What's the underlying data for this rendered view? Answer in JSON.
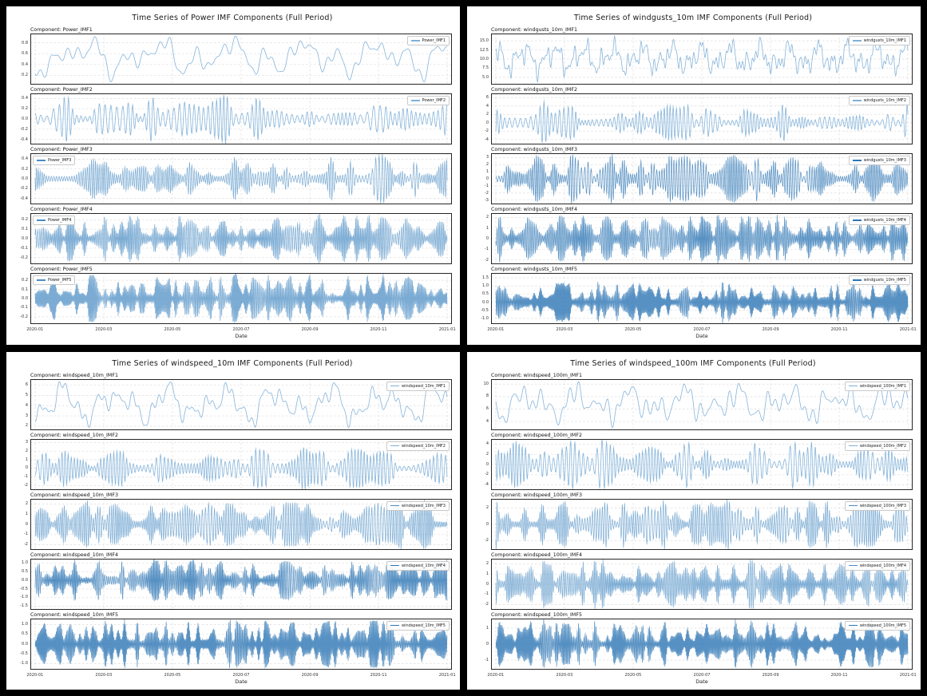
{
  "colors": {
    "page_background": "#000000",
    "panel_background": "#ffffff",
    "grid_line": "#dcdcdc",
    "spine": "#262626",
    "accent_blue": "#3d85c0"
  },
  "shades": {
    "light": {
      "color": "#7fb0d8",
      "alpha": 0.95,
      "lw": 0.8
    },
    "mid": {
      "color": "#4a8cc4",
      "alpha": 0.72,
      "lw": 0.7
    },
    "dense": {
      "color": "#2d76b4",
      "alpha": 0.8,
      "lw": 0.7
    }
  },
  "chart_data": [
    {
      "type": "line",
      "title": "Time Series of Power IMF Components (Full Period)",
      "xlabel": "Date",
      "x_range": [
        "2020-01",
        "2021-01"
      ],
      "xticks": [
        "2020-01",
        "2020-03",
        "2020-05",
        "2020-07",
        "2020-09",
        "2020-11",
        "2021-01"
      ],
      "grid": true,
      "subplots": [
        {
          "component": "Component: Power_IMF1",
          "legend": "Power_IMF1",
          "legend_pos": "right",
          "yticks": [
            "0.8",
            "0.6",
            "0.4",
            "0.2"
          ],
          "ylim": [
            0.03,
            0.97
          ],
          "mode": "smooth",
          "cycles": 46,
          "points": 520,
          "seed": 11,
          "shade": "light"
        },
        {
          "component": "Component: Power_IMF2",
          "legend": "Power_IMF2",
          "legend_pos": "right",
          "yticks": [
            "0.4",
            "0.2",
            "0.0",
            "-0.2",
            "-0.4"
          ],
          "ylim": [
            -0.5,
            0.5
          ],
          "mode": "osc",
          "cycles": 95,
          "points": 1100,
          "seed": 12,
          "shade": "light"
        },
        {
          "component": "Component: Power_IMF3",
          "legend": "Power_IMF3",
          "legend_pos": "left",
          "yticks": [
            "0.4",
            "0.2",
            "0.0",
            "-0.2",
            "-0.4"
          ],
          "ylim": [
            -0.52,
            0.52
          ],
          "mode": "osc",
          "cycles": 175,
          "points": 1800,
          "seed": 13,
          "shade": "mid"
        },
        {
          "component": "Component: Power_IMF4",
          "legend": "Power_IMF4",
          "legend_pos": "left",
          "yticks": [
            "0.2",
            "0.1",
            "0.0",
            "-0.1",
            "-0.2"
          ],
          "ylim": [
            -0.27,
            0.27
          ],
          "mode": "osc",
          "cycles": 280,
          "points": 2800,
          "seed": 14,
          "shade": "mid"
        },
        {
          "component": "Component: Power_IMF5",
          "legend": "Power_IMF5",
          "legend_pos": "left",
          "yticks": [
            "0.2",
            "0.1",
            "0.0",
            "-0.1",
            "-0.2"
          ],
          "ylim": [
            -0.28,
            0.28
          ],
          "mode": "osc",
          "cycles": 430,
          "points": 3600,
          "seed": 15,
          "shade": "mid"
        }
      ]
    },
    {
      "type": "line",
      "title": "Time Series of windgusts_10m IMF Components (Full Period)",
      "xlabel": "Date",
      "x_range": [
        "2020-01",
        "2021-01"
      ],
      "xticks": [
        "2020-01",
        "2020-03",
        "2020-05",
        "2020-07",
        "2020-09",
        "2020-11",
        "2021-01"
      ],
      "grid": true,
      "subplots": [
        {
          "component": "Component: windgusts_10m_IMF1",
          "legend": "windgusts_10m_IMF1",
          "legend_pos": "right",
          "yticks": [
            "15.0",
            "12.5",
            "10.0",
            "7.5",
            "5.0"
          ],
          "ylim": [
            3.0,
            17.0
          ],
          "mode": "smooth",
          "cycles": 120,
          "points": 900,
          "seed": 21,
          "shade": "light"
        },
        {
          "component": "Component: windgusts_10m_IMF2",
          "legend": "windgusts_10m_IMF2",
          "legend_pos": "right",
          "yticks": [
            "6",
            "4",
            "2",
            "0",
            "-2",
            "-4"
          ],
          "ylim": [
            -5.2,
            7.0
          ],
          "mode": "osc",
          "cycles": 110,
          "points": 1200,
          "seed": 22,
          "shade": "light"
        },
        {
          "component": "Component: windgusts_10m_IMF3",
          "legend": "windgusts_10m_IMF3",
          "legend_pos": "right",
          "yticks": [
            "3",
            "2",
            "1",
            "0",
            "-1",
            "-2",
            "-3"
          ],
          "ylim": [
            -3.6,
            3.6
          ],
          "mode": "osc",
          "cycles": 185,
          "points": 2000,
          "seed": 23,
          "shade": "dense"
        },
        {
          "component": "Component: windgusts_10m_IMF4",
          "legend": "windgusts_10m_IMF4",
          "legend_pos": "right",
          "yticks": [
            "2",
            "1",
            "0",
            "-1",
            "-2"
          ],
          "ylim": [
            -2.4,
            2.4
          ],
          "mode": "osc",
          "cycles": 290,
          "points": 2900,
          "seed": 24,
          "shade": "dense"
        },
        {
          "component": "Component: windgusts_10m_IMF5",
          "legend": "windgusts_10m_IMF5",
          "legend_pos": "right",
          "yticks": [
            "1.5",
            "1.0",
            "0.5",
            "0.0",
            "-0.5",
            "-1.0"
          ],
          "ylim": [
            -1.35,
            1.8
          ],
          "mode": "osc",
          "cycles": 430,
          "points": 3600,
          "seed": 25,
          "shade": "dense"
        }
      ]
    },
    {
      "type": "line",
      "title": "Time Series of windspeed_10m IMF Components (Full Period)",
      "xlabel": "Date",
      "x_range": [
        "2020-01",
        "2021-01"
      ],
      "xticks": [
        "2020-01",
        "2020-03",
        "2020-05",
        "2020-07",
        "2020-09",
        "2020-11",
        "2021-01"
      ],
      "grid": true,
      "subplots": [
        {
          "component": "Component: windspeed_10m_IMF1",
          "legend": "windspeed_10m_IMF1",
          "legend_pos": "right",
          "yticks": [
            "6",
            "5",
            "4",
            "3",
            "2"
          ],
          "ylim": [
            1.6,
            6.6
          ],
          "mode": "smooth",
          "cycles": 60,
          "points": 620,
          "seed": 31,
          "shade": "light"
        },
        {
          "component": "Component: windspeed_10m_IMF2",
          "legend": "windspeed_10m_IMF2",
          "legend_pos": "right",
          "yticks": [
            "3",
            "2",
            "1",
            "0",
            "-1",
            "-2"
          ],
          "ylim": [
            -2.5,
            3.4
          ],
          "mode": "osc",
          "cycles": 115,
          "points": 1200,
          "seed": 32,
          "shade": "light"
        },
        {
          "component": "Component: windspeed_10m_IMF3",
          "legend": "windspeed_10m_IMF3",
          "legend_pos": "right",
          "yticks": [
            "2",
            "1",
            "0",
            "-1",
            "-2"
          ],
          "ylim": [
            -2.5,
            2.5
          ],
          "mode": "osc",
          "cycles": 185,
          "points": 2000,
          "seed": 33,
          "shade": "mid"
        },
        {
          "component": "Component: windspeed_10m_IMF4",
          "legend": "windspeed_10m_IMF4",
          "legend_pos": "right",
          "yticks": [
            "1.0",
            "0.5",
            "0.0",
            "-0.5",
            "-1.0",
            "-1.5"
          ],
          "ylim": [
            -1.7,
            1.25
          ],
          "mode": "osc",
          "cycles": 290,
          "points": 2900,
          "seed": 34,
          "shade": "dense"
        },
        {
          "component": "Component: windspeed_10m_IMF5",
          "legend": "windspeed_10m_IMF5",
          "legend_pos": "right",
          "yticks": [
            "1.0",
            "0.5",
            "0.0",
            "-0.5",
            "-1.0"
          ],
          "ylim": [
            -1.3,
            1.3
          ],
          "mode": "osc",
          "cycles": 430,
          "points": 3600,
          "seed": 35,
          "shade": "dense"
        }
      ]
    },
    {
      "type": "line",
      "title": "Time Series of windspeed_100m IMF Components (Full Period)",
      "xlabel": "Date",
      "x_range": [
        "2020-01",
        "2021-01"
      ],
      "xticks": [
        "2020-01",
        "2020-03",
        "2020-05",
        "2020-07",
        "2020-09",
        "2020-11",
        "2021-01"
      ],
      "grid": true,
      "subplots": [
        {
          "component": "Component: windspeed_100m_IMF1",
          "legend": "windspeed_100m_IMF1",
          "legend_pos": "right",
          "yticks": [
            "10",
            "8",
            "6",
            "4"
          ],
          "ylim": [
            2.6,
            10.8
          ],
          "mode": "smooth",
          "cycles": 58,
          "points": 620,
          "seed": 41,
          "shade": "light"
        },
        {
          "component": "Component: windspeed_100m_IMF2",
          "legend": "windspeed_100m_IMF2",
          "legend_pos": "right",
          "yticks": [
            "4",
            "2",
            "0",
            "-2",
            "-4"
          ],
          "ylim": [
            -5.0,
            5.0
          ],
          "mode": "osc",
          "cycles": 115,
          "points": 1200,
          "seed": 42,
          "shade": "light"
        },
        {
          "component": "Component: windspeed_100m_IMF3",
          "legend": "windspeed_100m_IMF3",
          "legend_pos": "right",
          "yticks": [
            "2",
            "0",
            "-2"
          ],
          "ylim": [
            -3.1,
            3.1
          ],
          "mode": "osc",
          "cycles": 185,
          "points": 2000,
          "seed": 43,
          "shade": "mid"
        },
        {
          "component": "Component: windspeed_100m_IMF4",
          "legend": "windspeed_100m_IMF4",
          "legend_pos": "right",
          "yticks": [
            "2",
            "1",
            "0",
            "-1",
            "-2"
          ],
          "ylim": [
            -2.5,
            2.5
          ],
          "mode": "osc",
          "cycles": 290,
          "points": 2900,
          "seed": 44,
          "shade": "mid"
        },
        {
          "component": "Component: windspeed_100m_IMF5",
          "legend": "windspeed_100m_IMF5",
          "legend_pos": "right",
          "yticks": [
            "1",
            "0",
            "-1"
          ],
          "ylim": [
            -1.6,
            1.6
          ],
          "mode": "osc",
          "cycles": 430,
          "points": 3600,
          "seed": 45,
          "shade": "dense"
        }
      ]
    }
  ]
}
